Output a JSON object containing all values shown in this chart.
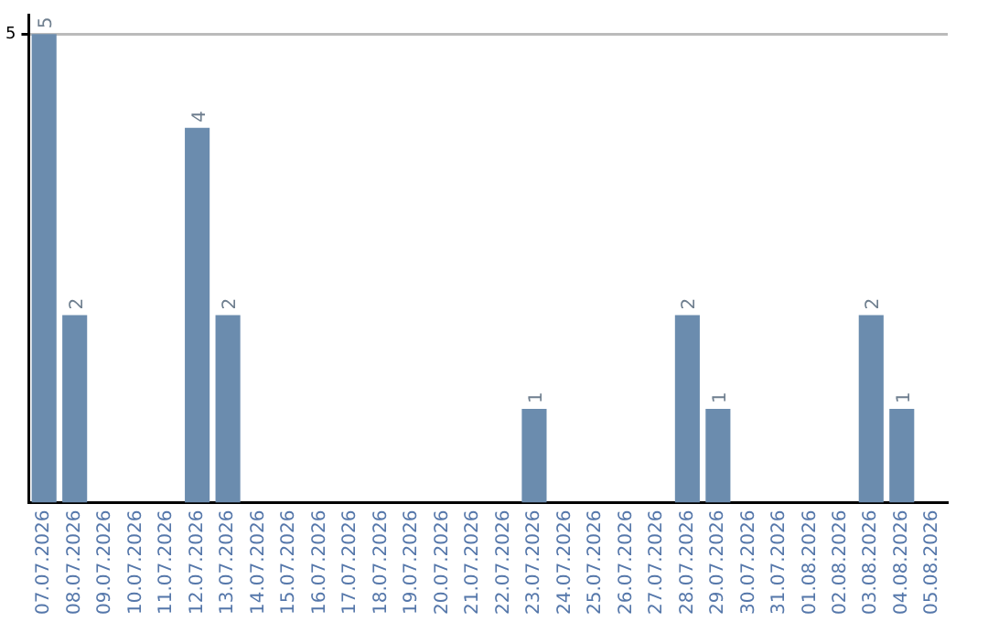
{
  "chart_data": {
    "type": "bar",
    "categories": [
      "07.07.2026",
      "08.07.2026",
      "09.07.2026",
      "10.07.2026",
      "11.07.2026",
      "12.07.2026",
      "13.07.2026",
      "14.07.2026",
      "15.07.2026",
      "16.07.2026",
      "17.07.2026",
      "18.07.2026",
      "19.07.2026",
      "20.07.2026",
      "21.07.2026",
      "22.07.2026",
      "23.07.2026",
      "24.07.2026",
      "25.07.2026",
      "26.07.2026",
      "27.07.2026",
      "28.07.2026",
      "29.07.2026",
      "30.07.2026",
      "31.07.2026",
      "01.08.2026",
      "02.08.2026",
      "03.08.2026",
      "04.08.2026",
      "05.08.2026"
    ],
    "values": [
      5,
      2,
      0,
      0,
      0,
      4,
      2,
      0,
      0,
      0,
      0,
      0,
      0,
      0,
      0,
      0,
      1,
      0,
      0,
      0,
      0,
      2,
      1,
      0,
      0,
      0,
      0,
      2,
      1,
      0
    ],
    "value_labels": [
      "5",
      "2",
      null,
      null,
      null,
      "4",
      "2",
      null,
      null,
      null,
      null,
      null,
      null,
      null,
      null,
      null,
      "1",
      null,
      null,
      null,
      null,
      "2",
      "1",
      null,
      null,
      null,
      null,
      "2",
      "1",
      null
    ],
    "color": "#6b8cae",
    "ylim": [
      0,
      5.2
    ],
    "yticks": [
      5
    ],
    "grid": "y",
    "legend": false
  }
}
